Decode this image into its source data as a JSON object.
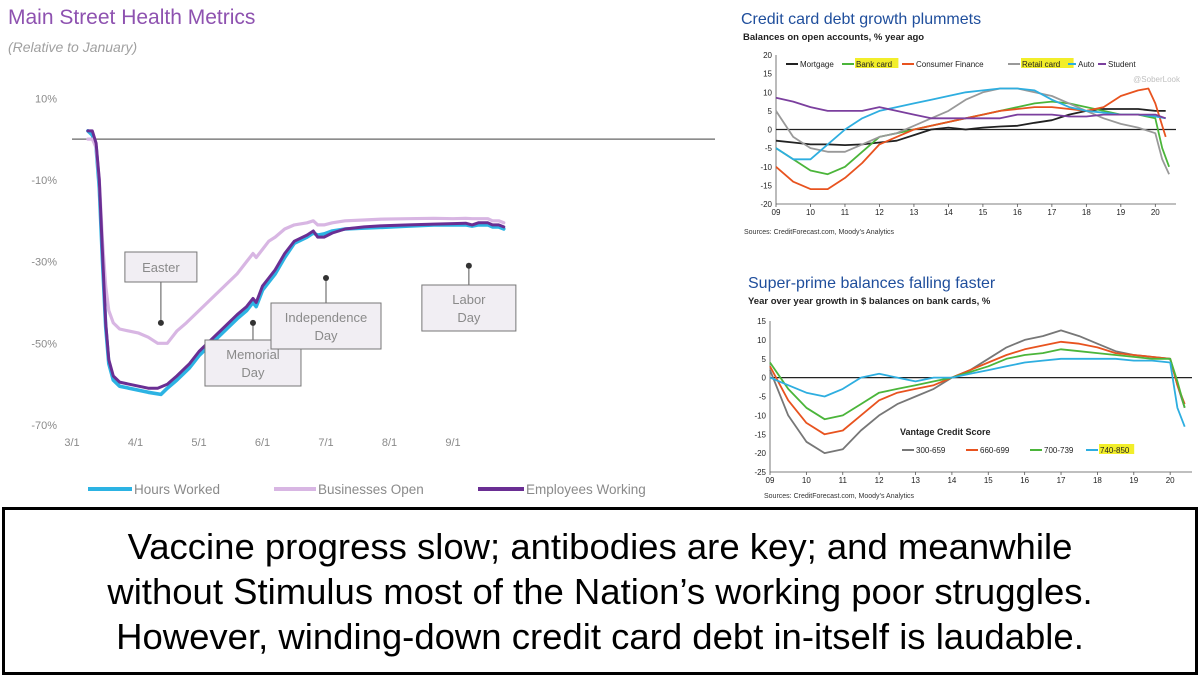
{
  "caption": "Vaccine progress slow; antibodies are key; and meanwhile\nwithout Stimulus most of the Nation’s working poor struggles.\nHowever, winding-down credit card debt in-itself is laudable.",
  "chart_data": [
    {
      "type": "line",
      "title": "Main Street Health Metrics",
      "subtitle": "(Relative to January)",
      "xlabel": "",
      "ylabel": "",
      "x_ticks": [
        "3/1",
        "4/1",
        "5/1",
        "6/1",
        "7/1",
        "8/1",
        "9/1"
      ],
      "y_ticks": [
        "10%",
        "-10%",
        "-30%",
        "-50%",
        "-70%"
      ],
      "ylim": [
        -70,
        13
      ],
      "x_range_months": [
        3.0,
        9.85
      ],
      "legend_position": "bottom",
      "grid": false,
      "zero_line": true,
      "series": [
        {
          "name": "Hours Worked",
          "color": "#2cb3e3",
          "x": [
            3.25,
            3.32,
            3.38,
            3.43,
            3.48,
            3.53,
            3.58,
            3.65,
            3.75,
            3.9,
            4.05,
            4.2,
            4.4,
            4.5,
            4.65,
            4.85,
            5.0,
            5.2,
            5.4,
            5.6,
            5.75,
            5.85,
            5.9,
            6.0,
            6.1,
            6.2,
            6.35,
            6.5,
            6.7,
            6.8,
            6.87,
            6.97,
            7.1,
            7.3,
            7.6,
            7.9,
            8.3,
            8.7,
            9.0,
            9.2,
            9.3,
            9.4,
            9.55,
            9.62,
            9.72,
            9.8
          ],
          "y": [
            2,
            1,
            -2,
            -12,
            -30,
            -46,
            -55,
            -59,
            -60.5,
            -61,
            -61.5,
            -62,
            -62.5,
            -61,
            -59,
            -56,
            -53,
            -50,
            -47,
            -44,
            -42,
            -40,
            -41,
            -37,
            -35,
            -33,
            -29,
            -25.5,
            -24,
            -23,
            -23.5,
            -23.2,
            -22.5,
            -22,
            -21.8,
            -21.6,
            -21.3,
            -21,
            -21,
            -21,
            -21.3,
            -21,
            -21,
            -21.5,
            -21.5,
            -22
          ]
        },
        {
          "name": "Businesses Open",
          "color": "#d8b6e3",
          "x": [
            3.25,
            3.32,
            3.38,
            3.43,
            3.48,
            3.53,
            3.58,
            3.65,
            3.75,
            3.9,
            4.05,
            4.2,
            4.35,
            4.5,
            4.65,
            4.8,
            5.0,
            5.2,
            5.4,
            5.6,
            5.75,
            5.85,
            5.9,
            6.0,
            6.1,
            6.2,
            6.35,
            6.5,
            6.7,
            6.8,
            6.87,
            6.97,
            7.1,
            7.3,
            7.6,
            7.9,
            8.3,
            8.7,
            9.0,
            9.2,
            9.3,
            9.4,
            9.55,
            9.62,
            9.72,
            9.8
          ],
          "y": [
            0,
            0,
            -2,
            -10,
            -25,
            -36,
            -42,
            -45,
            -46.5,
            -47,
            -47.5,
            -48.5,
            -50,
            -50,
            -47,
            -45,
            -42,
            -39,
            -36,
            -33,
            -30,
            -28,
            -29,
            -27,
            -25,
            -24,
            -22,
            -21,
            -20.5,
            -20,
            -21,
            -21,
            -20.5,
            -20,
            -19.8,
            -19.6,
            -19.5,
            -19.4,
            -19.5,
            -19.4,
            -19.5,
            -19.5,
            -19.5,
            -20,
            -20,
            -20.5
          ]
        },
        {
          "name": "Employees Working",
          "color": "#6a2e93",
          "x": [
            3.25,
            3.32,
            3.38,
            3.43,
            3.48,
            3.53,
            3.58,
            3.65,
            3.75,
            3.9,
            4.05,
            4.2,
            4.35,
            4.5,
            4.65,
            4.85,
            5.0,
            5.2,
            5.4,
            5.6,
            5.75,
            5.85,
            5.9,
            6.0,
            6.1,
            6.2,
            6.35,
            6.5,
            6.7,
            6.8,
            6.87,
            6.97,
            7.1,
            7.3,
            7.6,
            7.9,
            8.3,
            8.7,
            9.0,
            9.2,
            9.3,
            9.4,
            9.55,
            9.62,
            9.72,
            9.8
          ],
          "y": [
            2,
            2,
            -1,
            -10,
            -28,
            -45,
            -54,
            -58,
            -59.5,
            -60,
            -60.5,
            -61,
            -61,
            -60,
            -58,
            -55,
            -52,
            -49,
            -46,
            -43,
            -41,
            -39,
            -40,
            -36,
            -34,
            -32,
            -28,
            -25,
            -23.5,
            -22.5,
            -24,
            -24,
            -23,
            -22,
            -21.5,
            -21.2,
            -21,
            -20.8,
            -20.7,
            -20.6,
            -21,
            -20.5,
            -20.5,
            -21,
            -21,
            -21.5
          ]
        }
      ],
      "annotations": [
        {
          "label": "Easter",
          "x": 4.4,
          "y": -45
        },
        {
          "label": "Memorial Day",
          "x": 5.85,
          "y": -45
        },
        {
          "label": "Independence Day",
          "x": 7.0,
          "y": -34
        },
        {
          "label": "Labor Day",
          "x": 9.25,
          "y": -31
        }
      ]
    },
    {
      "type": "line",
      "title": "Credit card debt growth plummets",
      "subtitle": "Balances on open accounts, % year ago",
      "sources": "Sources: CreditForecast.com, Moody’s Analytics",
      "x_ticks": [
        "09",
        "10",
        "11",
        "12",
        "13",
        "14",
        "15",
        "16",
        "17",
        "18",
        "19",
        "20"
      ],
      "y_ticks": [
        "20",
        "15",
        "10",
        "5",
        "0",
        "-5",
        "-10",
        "-15",
        "-20"
      ],
      "xlim": [
        2009.0,
        2020.6
      ],
      "ylim": [
        -20,
        20
      ],
      "grid": false,
      "legend_position": "top",
      "watermark": "@SoberLook",
      "series": [
        {
          "name": "Mortgage",
          "color": "#222222",
          "highlight": false,
          "x": [
            2009.0,
            2009.5,
            2010,
            2010.5,
            2011,
            2011.5,
            2012,
            2012.5,
            2013,
            2013.5,
            2014,
            2014.5,
            2015,
            2015.5,
            2016,
            2016.5,
            2017,
            2017.5,
            2018,
            2018.5,
            2019,
            2019.5,
            2020,
            2020.3
          ],
          "y": [
            -3,
            -3.5,
            -4,
            -4,
            -4.2,
            -4,
            -3.5,
            -3,
            -1.5,
            0,
            0.5,
            0,
            0.5,
            0.8,
            1,
            1.8,
            2.5,
            4,
            5,
            5.5,
            5.5,
            5.5,
            5,
            5
          ]
        },
        {
          "name": "Bank card",
          "color": "#4bb53a",
          "highlight": true,
          "x": [
            2009.0,
            2009.5,
            2010,
            2010.5,
            2011,
            2011.5,
            2012,
            2012.5,
            2013,
            2013.5,
            2014,
            2014.5,
            2015,
            2015.5,
            2016,
            2016.5,
            2017,
            2017.5,
            2018,
            2018.5,
            2019,
            2019.5,
            2020,
            2020.2,
            2020.4
          ],
          "y": [
            -5,
            -8,
            -11,
            -12,
            -10,
            -6,
            -2,
            -1,
            0,
            1,
            2,
            3,
            4,
            5,
            6,
            7,
            7.5,
            7,
            6,
            5,
            4,
            4,
            3,
            -5,
            -10
          ]
        },
        {
          "name": "Consumer Finance",
          "color": "#e8531f",
          "highlight": false,
          "x": [
            2009.0,
            2009.5,
            2010,
            2010.5,
            2011,
            2011.5,
            2012,
            2012.5,
            2013,
            2013.5,
            2014,
            2014.5,
            2015,
            2015.5,
            2016,
            2016.5,
            2017,
            2017.5,
            2018,
            2018.5,
            2019,
            2019.5,
            2019.8,
            2020,
            2020.3
          ],
          "y": [
            -10,
            -14,
            -16,
            -16,
            -13,
            -9,
            -4,
            -2,
            0,
            1,
            2,
            3,
            4,
            5,
            5.5,
            6,
            6,
            5.5,
            5,
            6,
            9,
            10.5,
            11,
            7,
            -2
          ]
        },
        {
          "name": "Retail card",
          "color": "#999999",
          "highlight": true,
          "x": [
            2009.0,
            2009.5,
            2010,
            2010.5,
            2011,
            2011.5,
            2012,
            2012.5,
            2013,
            2013.5,
            2014,
            2014.5,
            2015,
            2015.5,
            2016,
            2016.5,
            2017,
            2017.5,
            2018,
            2018.5,
            2019,
            2019.5,
            2020,
            2020.2,
            2020.4
          ],
          "y": [
            5,
            -2,
            -5,
            -6,
            -6,
            -4,
            -2,
            -1,
            1,
            3,
            5,
            8,
            10,
            11,
            11,
            10,
            9,
            7,
            5,
            3,
            1.5,
            0.5,
            -1,
            -8,
            -12
          ]
        },
        {
          "name": "Auto",
          "color": "#2eaee0",
          "highlight": false,
          "x": [
            2009.0,
            2009.5,
            2010,
            2010.5,
            2011,
            2011.5,
            2012,
            2012.5,
            2013,
            2013.5,
            2014,
            2014.5,
            2015,
            2015.5,
            2016,
            2016.5,
            2017,
            2017.5,
            2018,
            2018.5,
            2019,
            2019.5,
            2020,
            2020.3
          ],
          "y": [
            -5,
            -8,
            -8,
            -4,
            0,
            3,
            5,
            6,
            7,
            8,
            9,
            10,
            10.5,
            11,
            11,
            10.5,
            8,
            6,
            5,
            4.5,
            4,
            4,
            3.5,
            3
          ]
        },
        {
          "name": "Student",
          "color": "#7b3f9e",
          "highlight": false,
          "x": [
            2009.0,
            2009.5,
            2010,
            2010.5,
            2011,
            2011.5,
            2012,
            2012.5,
            2013,
            2013.5,
            2014,
            2014.5,
            2015,
            2015.5,
            2016,
            2016.5,
            2017,
            2017.5,
            2018,
            2018.5,
            2019,
            2019.5,
            2020,
            2020.3
          ],
          "y": [
            8.5,
            7.5,
            6,
            5,
            5,
            5,
            6,
            5,
            4,
            3,
            3,
            3,
            3,
            3,
            4,
            4,
            4,
            3.5,
            3.5,
            4,
            4,
            4,
            4,
            3
          ]
        }
      ]
    },
    {
      "type": "line",
      "title": "Super-prime balances falling faster",
      "subtitle": "Year over year growth in $ balances on bank cards, %",
      "sources": "Sources: CreditForecast.com, Moody’s Analytics",
      "legend_title": "Vantage Credit Score",
      "x_ticks": [
        "09",
        "10",
        "11",
        "12",
        "13",
        "14",
        "15",
        "16",
        "17",
        "18",
        "19",
        "20"
      ],
      "y_ticks": [
        "15",
        "10",
        "5",
        "0",
        "-5",
        "-10",
        "-15",
        "-20",
        "-25"
      ],
      "xlim": [
        2009.0,
        2020.6
      ],
      "ylim": [
        -25,
        15
      ],
      "grid": false,
      "legend_position": "bottom-right",
      "series": [
        {
          "name": "300-659",
          "color": "#777777",
          "highlight": false,
          "x": [
            2009.0,
            2009.5,
            2010,
            2010.5,
            2011,
            2011.5,
            2012,
            2012.5,
            2013,
            2013.5,
            2014,
            2014.5,
            2015,
            2015.5,
            2016,
            2016.5,
            2017,
            2017.5,
            2018,
            2018.5,
            2019,
            2019.5,
            2020,
            2020.2,
            2020.4
          ],
          "y": [
            2,
            -10,
            -17,
            -20,
            -19,
            -14,
            -10,
            -7,
            -5,
            -3,
            0,
            2,
            5,
            8,
            10,
            11,
            12.5,
            11,
            9,
            7,
            6,
            5.5,
            5,
            -2,
            -8
          ]
        },
        {
          "name": "660-699",
          "color": "#e8531f",
          "highlight": false,
          "x": [
            2009.0,
            2009.5,
            2010,
            2010.5,
            2011,
            2011.5,
            2012,
            2012.5,
            2013,
            2013.5,
            2014,
            2014.5,
            2015,
            2015.5,
            2016,
            2016.5,
            2017,
            2017.5,
            2018,
            2018.5,
            2019,
            2019.5,
            2020,
            2020.2,
            2020.4
          ],
          "y": [
            3,
            -6,
            -12,
            -15,
            -14,
            -10,
            -6,
            -4,
            -3,
            -2,
            0,
            2,
            4,
            6,
            7.5,
            8.5,
            9.5,
            9,
            8,
            6.5,
            6,
            5.5,
            5,
            -2,
            -7
          ]
        },
        {
          "name": "700-739",
          "color": "#4bb53a",
          "highlight": false,
          "x": [
            2009.0,
            2009.5,
            2010,
            2010.5,
            2011,
            2011.5,
            2012,
            2012.5,
            2013,
            2013.5,
            2014,
            2014.5,
            2015,
            2015.5,
            2016,
            2016.5,
            2017,
            2017.5,
            2018,
            2018.5,
            2019,
            2019.5,
            2020,
            2020.2,
            2020.4
          ],
          "y": [
            4,
            -3,
            -8,
            -11,
            -10,
            -7,
            -4,
            -3,
            -2,
            -1,
            0,
            1.5,
            3,
            5,
            6,
            6.5,
            7.5,
            7,
            6.5,
            6,
            5.5,
            5,
            5,
            -1,
            -8
          ]
        },
        {
          "name": "740-850",
          "color": "#2eaee0",
          "highlight": true,
          "x": [
            2009.0,
            2009.5,
            2010,
            2010.5,
            2011,
            2011.5,
            2012,
            2012.5,
            2013,
            2013.5,
            2014,
            2014.5,
            2015,
            2015.5,
            2016,
            2016.5,
            2017,
            2017.5,
            2018,
            2018.5,
            2019,
            2019.5,
            2020,
            2020.2,
            2020.4
          ],
          "y": [
            0,
            -2,
            -4,
            -5,
            -3,
            0,
            1,
            0,
            -1,
            0,
            0,
            1,
            2,
            3,
            4,
            4.5,
            5,
            5,
            5,
            5,
            4.5,
            4.5,
            4,
            -8,
            -13
          ]
        }
      ]
    }
  ]
}
